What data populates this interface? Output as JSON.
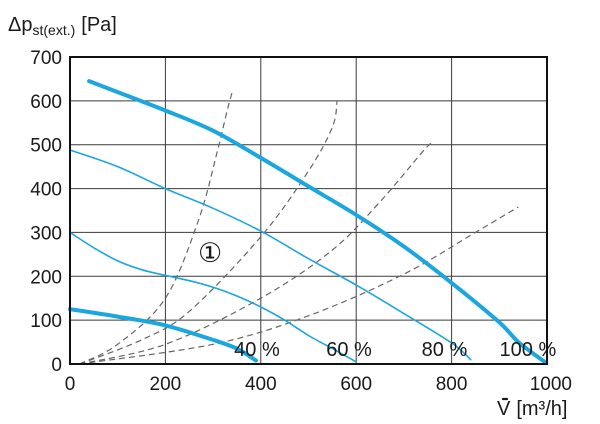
{
  "chart_data": {
    "type": "line",
    "title": "",
    "ylabel": "Δp_st(ext.) [Pa]",
    "ylabel_main": "Δp",
    "ylabel_sub": "st(ext.)",
    "ylabel_unit": "[Pa]",
    "xlabel": "V̇ [m³/h]",
    "xlabel_v": "V",
    "xlabel_unit": "[m³/h]",
    "xlim": [
      0,
      1000
    ],
    "ylim": [
      0,
      700
    ],
    "x_ticks": [
      0,
      200,
      400,
      600,
      800,
      1000
    ],
    "y_ticks": [
      0,
      100,
      200,
      300,
      400,
      500,
      600,
      700
    ],
    "grid": true,
    "accent_color": "#1aa7e0",
    "system_curve_color": "#666666",
    "fan_curves": [
      {
        "name": "100 %",
        "label": "100 %",
        "weight": "bold",
        "points": [
          [
            40,
            645
          ],
          [
            100,
            620
          ],
          [
            200,
            578
          ],
          [
            300,
            532
          ],
          [
            400,
            470
          ],
          [
            500,
            405
          ],
          [
            600,
            340
          ],
          [
            700,
            268
          ],
          [
            800,
            185
          ],
          [
            900,
            95
          ],
          [
            940,
            50
          ],
          [
            995,
            5
          ]
        ]
      },
      {
        "name": "80 %",
        "label": "80 %",
        "weight": "thin",
        "points": [
          [
            0,
            488
          ],
          [
            100,
            450
          ],
          [
            200,
            400
          ],
          [
            300,
            355
          ],
          [
            400,
            303
          ],
          [
            500,
            240
          ],
          [
            600,
            180
          ],
          [
            700,
            115
          ],
          [
            800,
            48
          ],
          [
            840,
            10
          ]
        ]
      },
      {
        "name": "60 %",
        "label": "60 %",
        "weight": "thin",
        "points": [
          [
            0,
            300
          ],
          [
            50,
            265
          ],
          [
            100,
            235
          ],
          [
            150,
            215
          ],
          [
            200,
            202
          ],
          [
            250,
            190
          ],
          [
            300,
            175
          ],
          [
            350,
            155
          ],
          [
            400,
            130
          ],
          [
            450,
            100
          ],
          [
            500,
            65
          ],
          [
            550,
            35
          ],
          [
            600,
            5
          ]
        ]
      },
      {
        "name": "40 %",
        "label": "40 %",
        "weight": "bold",
        "points": [
          [
            0,
            125
          ],
          [
            100,
            108
          ],
          [
            200,
            88
          ],
          [
            300,
            55
          ],
          [
            350,
            35
          ],
          [
            390,
            8
          ]
        ]
      }
    ],
    "system_curves": [
      {
        "points": [
          [
            20,
            0
          ],
          [
            100,
            45
          ],
          [
            200,
            150
          ],
          [
            270,
            330
          ],
          [
            310,
            490
          ],
          [
            330,
            580
          ],
          [
            340,
            620
          ]
        ]
      },
      {
        "points": [
          [
            20,
            0
          ],
          [
            150,
            55
          ],
          [
            250,
            120
          ],
          [
            400,
            290
          ],
          [
            500,
            440
          ],
          [
            550,
            540
          ],
          [
            560,
            600
          ]
        ]
      },
      {
        "points": [
          [
            20,
            0
          ],
          [
            200,
            45
          ],
          [
            400,
            150
          ],
          [
            550,
            260
          ],
          [
            650,
            370
          ],
          [
            740,
            485
          ],
          [
            760,
            505
          ]
        ]
      },
      {
        "points": [
          [
            20,
            0
          ],
          [
            300,
            45
          ],
          [
            500,
            110
          ],
          [
            700,
            205
          ],
          [
            850,
            300
          ],
          [
            940,
            358
          ]
        ]
      }
    ],
    "annotations": [
      "①"
    ]
  }
}
